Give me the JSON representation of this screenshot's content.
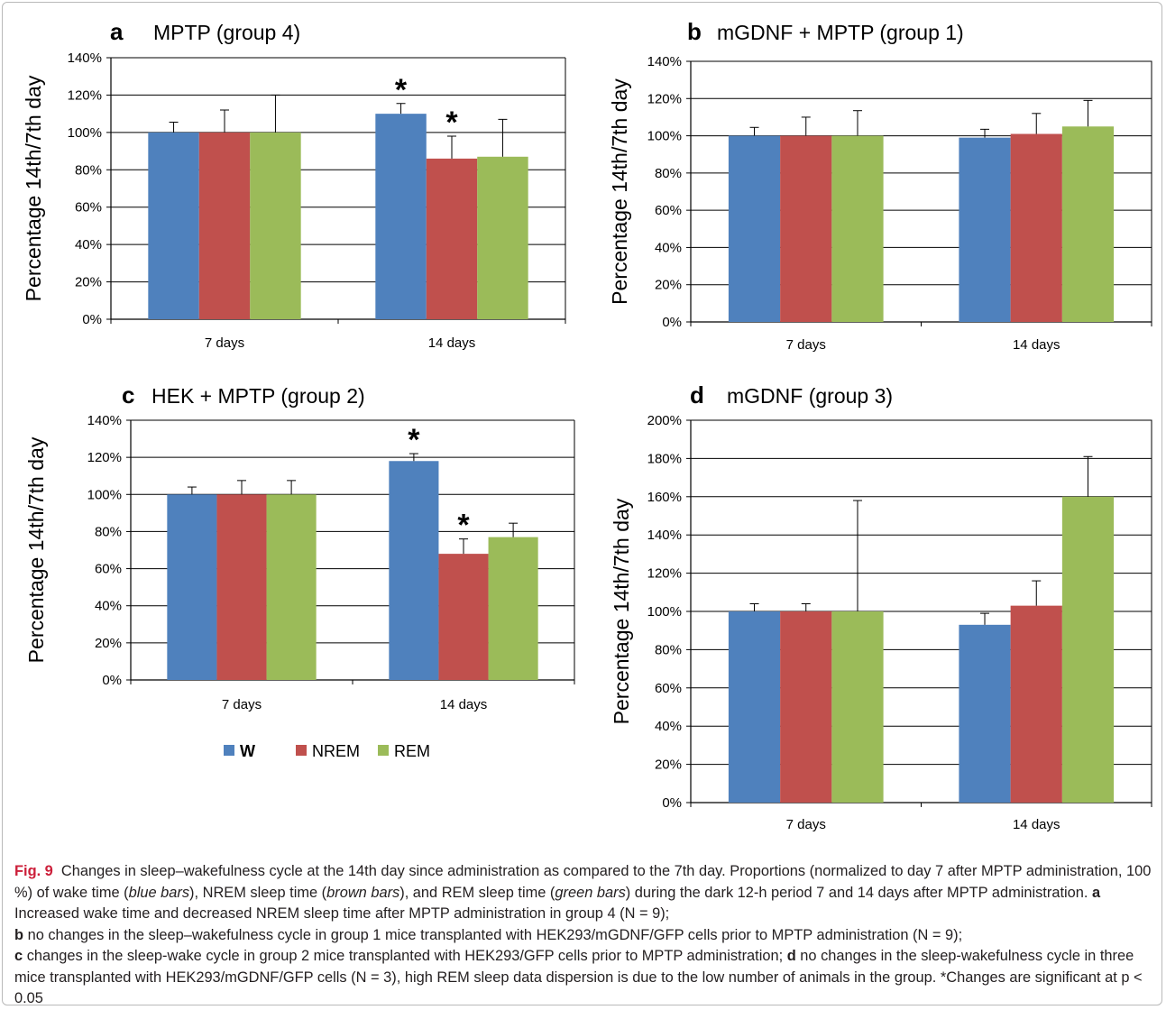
{
  "colors": {
    "W": "#4f81bd",
    "NREM": "#c0504d",
    "REM": "#9bbb59"
  },
  "legend": [
    "W",
    "NREM",
    "REM"
  ],
  "ylabel": "Percentage 14th/7th day",
  "chart_data": [
    {
      "panel": "a",
      "type": "bar",
      "title": "MPTP (group 4)",
      "categories": [
        "7 days",
        "14 days"
      ],
      "ylabel": "Percentage 14th/7th day",
      "ylim": [
        0,
        140
      ],
      "yticks": [
        0,
        20,
        40,
        60,
        80,
        100,
        120,
        140
      ],
      "ytick_suffix": "%",
      "series": [
        {
          "name": "W",
          "values": [
            100,
            110
          ],
          "errors": [
            5.5,
            5.5
          ]
        },
        {
          "name": "NREM",
          "values": [
            100,
            86
          ],
          "errors": [
            12,
            12
          ]
        },
        {
          "name": "REM",
          "values": [
            100,
            87
          ],
          "errors": [
            20,
            20
          ]
        }
      ],
      "significance": [
        {
          "series": "W",
          "category": "14 days",
          "mark": "*"
        },
        {
          "series": "NREM",
          "category": "14 days",
          "mark": "*"
        }
      ]
    },
    {
      "panel": "b",
      "type": "bar",
      "title": "mGDNF + MPTP (group 1)",
      "categories": [
        "7 days",
        "14 days"
      ],
      "ylabel": "Percentage 14th/7th day",
      "ylim": [
        0,
        140
      ],
      "yticks": [
        0,
        20,
        40,
        60,
        80,
        100,
        120,
        140
      ],
      "ytick_suffix": "%",
      "series": [
        {
          "name": "W",
          "values": [
            100,
            99
          ],
          "errors": [
            4.5,
            4.5
          ]
        },
        {
          "name": "NREM",
          "values": [
            100,
            101
          ],
          "errors": [
            10,
            11
          ]
        },
        {
          "name": "REM",
          "values": [
            100,
            105
          ],
          "errors": [
            13.5,
            14
          ]
        }
      ],
      "significance": []
    },
    {
      "panel": "c",
      "type": "bar",
      "title": "HEK + MPTP (group 2)",
      "categories": [
        "7 days",
        "14 days"
      ],
      "ylabel": "Percentage 14th/7th day",
      "ylim": [
        0,
        140
      ],
      "yticks": [
        0,
        20,
        40,
        60,
        80,
        100,
        120,
        140
      ],
      "ytick_suffix": "%",
      "series": [
        {
          "name": "W",
          "values": [
            100,
            118
          ],
          "errors": [
            4,
            4
          ]
        },
        {
          "name": "NREM",
          "values": [
            100,
            68
          ],
          "errors": [
            7.5,
            8
          ]
        },
        {
          "name": "REM",
          "values": [
            100,
            77
          ],
          "errors": [
            7.5,
            7.5
          ]
        }
      ],
      "significance": [
        {
          "series": "W",
          "category": "14 days",
          "mark": "*"
        },
        {
          "series": "NREM",
          "category": "14 days",
          "mark": "*"
        }
      ]
    },
    {
      "panel": "d",
      "type": "bar",
      "title": "mGDNF (group 3)",
      "categories": [
        "7 days",
        "14 days"
      ],
      "ylabel": "Percentage 14th/7th day",
      "ylim": [
        0,
        200
      ],
      "yticks": [
        0,
        20,
        40,
        60,
        80,
        100,
        120,
        140,
        160,
        180,
        200
      ],
      "ytick_suffix": "%",
      "series": [
        {
          "name": "W",
          "values": [
            100,
            93
          ],
          "errors": [
            4,
            6
          ]
        },
        {
          "name": "NREM",
          "values": [
            100,
            103
          ],
          "errors": [
            4,
            13
          ]
        },
        {
          "name": "REM",
          "values": [
            100,
            160
          ],
          "errors": [
            58,
            21
          ]
        }
      ],
      "significance": []
    }
  ],
  "caption": {
    "label": "Fig. 9",
    "intro": "Changes in sleep–wakefulness cycle at the 14th day since administration as compared to the 7th day. Proportions (normalized to day 7 after MPTP administration, 100 %) of wake time (",
    "blue": "blue bars",
    "t1": "), NREM sleep time (",
    "brown": "brown bars",
    "t2": "), and REM sleep time (",
    "green": "green bars",
    "t3": ") during the dark 12-h period 7 and 14 days after MPTP administration.",
    "a_letter": "a",
    "a_text": "Increased wake time and decreased NREM sleep time after MPTP administration in group 4 (N = 9);",
    "b_letter": "b",
    "b_text": "no changes in the sleep–wakefulness cycle in group 1 mice transplanted with HEK293/mGDNF/GFP cells prior to MPTP administration (N = 9);",
    "c_letter": "c",
    "c_text": "changes in the sleep-wake cycle in group 2 mice transplanted with HEK293/GFP cells prior to MPTP administration;",
    "d_letter": "d",
    "d_text": "no changes in the sleep-wakefulness cycle in three mice transplanted with HEK293/mGDNF/GFP cells (N = 3), high REM sleep data dispersion is due to the low number of animals in the group. *Changes are significant at p < 0.05"
  }
}
